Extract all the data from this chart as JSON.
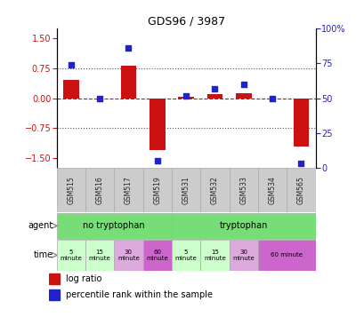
{
  "title": "GDS96 / 3987",
  "samples": [
    "GSM515",
    "GSM516",
    "GSM517",
    "GSM519",
    "GSM531",
    "GSM532",
    "GSM533",
    "GSM534",
    "GSM565"
  ],
  "log_ratio": [
    0.45,
    0.0,
    0.82,
    -1.3,
    0.03,
    0.1,
    0.12,
    0.0,
    -1.2
  ],
  "percentile": [
    74,
    50,
    86,
    5,
    52,
    57,
    60,
    50,
    3
  ],
  "ylim_left": [
    -1.75,
    1.75
  ],
  "ylim_right": [
    0,
    100
  ],
  "yticks_left": [
    -1.5,
    -0.75,
    0,
    0.75,
    1.5
  ],
  "yticks_right": [
    0,
    25,
    50,
    75,
    100
  ],
  "hlines": [
    -0.75,
    0,
    0.75
  ],
  "bar_color": "#cc1111",
  "dot_color": "#2222cc",
  "bar_width": 0.55,
  "agent_green": "#77dd77",
  "agent_pink": "#cc66cc",
  "time_colors": [
    "#ccffcc",
    "#ccffcc",
    "#ddaadd",
    "#cc66cc",
    "#ccffcc",
    "#ccffcc",
    "#ddaadd"
  ],
  "time_labels_top": [
    "5",
    "15",
    "30",
    "60",
    "5",
    "15",
    "30"
  ],
  "time_labels_bot": [
    "minute",
    "minute",
    "minute",
    "minute",
    "minute",
    "minute",
    "minute"
  ],
  "sample_bg": "#cccccc",
  "legend_bar_label": "log ratio",
  "legend_dot_label": "percentile rank within the sample"
}
